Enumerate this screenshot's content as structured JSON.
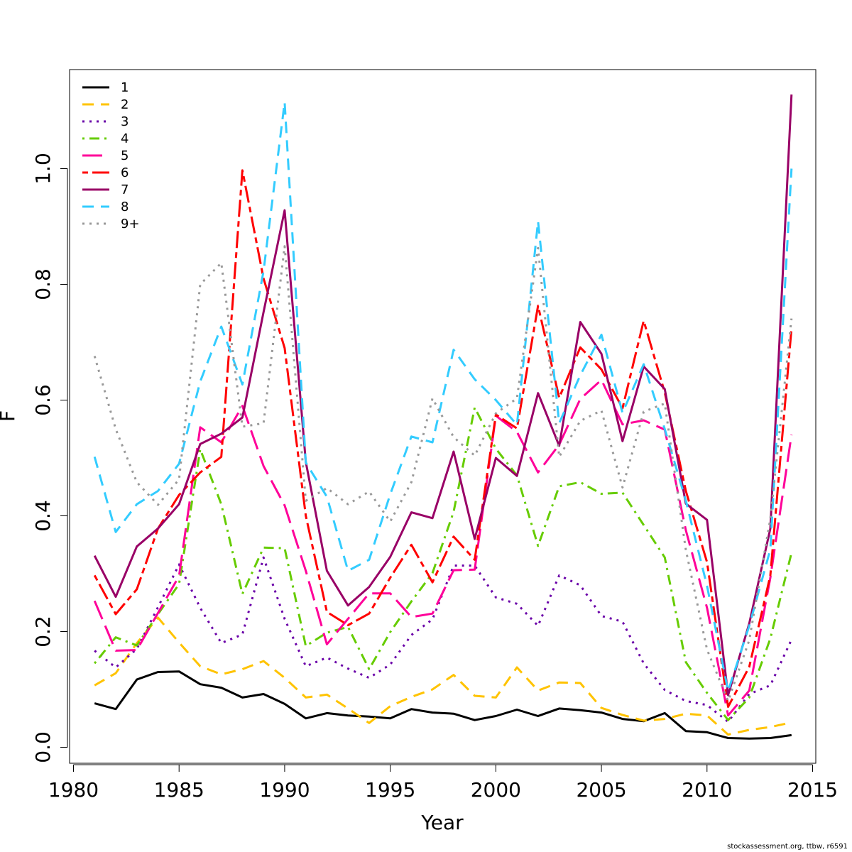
{
  "chart_data": {
    "type": "line",
    "xlabel": "Year",
    "ylabel": "F",
    "xlim": [
      1980,
      2015
    ],
    "ylim": [
      0,
      1.15
    ],
    "xticks": [
      "1980",
      "1985",
      "1990",
      "1995",
      "2000",
      "2005",
      "2010",
      "2015"
    ],
    "yticks": [
      "0.0",
      "0.2",
      "0.4",
      "0.6",
      "0.8",
      "1.0"
    ],
    "legend_position": "top-left",
    "grid": false,
    "x": [
      1981,
      1982,
      1983,
      1984,
      1985,
      1986,
      1987,
      1988,
      1989,
      1990,
      1991,
      1992,
      1993,
      1994,
      1995,
      1996,
      1997,
      1998,
      1999,
      2000,
      2001,
      2002,
      2003,
      2004,
      2005,
      2006,
      2007,
      2008,
      2009,
      2010,
      2011,
      2012,
      2013,
      2014
    ],
    "series": [
      {
        "name": "1",
        "color": "#000000",
        "dash": "solid",
        "values": [
          0.076,
          0.066,
          0.117,
          0.13,
          0.131,
          0.109,
          0.103,
          0.086,
          0.092,
          0.075,
          0.05,
          0.059,
          0.055,
          0.053,
          0.05,
          0.066,
          0.06,
          0.058,
          0.047,
          0.054,
          0.065,
          0.054,
          0.067,
          0.064,
          0.06,
          0.049,
          0.045,
          0.059,
          0.028,
          0.026,
          0.016,
          0.015,
          0.016,
          0.021
        ]
      },
      {
        "name": "2",
        "color": "#FFC300",
        "dash": "dashed",
        "values": [
          0.107,
          0.128,
          0.18,
          0.224,
          0.181,
          0.14,
          0.126,
          0.135,
          0.149,
          0.12,
          0.086,
          0.091,
          0.067,
          0.042,
          0.071,
          0.087,
          0.1,
          0.125,
          0.089,
          0.086,
          0.138,
          0.098,
          0.112,
          0.111,
          0.068,
          0.056,
          0.046,
          0.049,
          0.058,
          0.055,
          0.022,
          0.03,
          0.035,
          0.043
        ]
      },
      {
        "name": "3",
        "color": "#6A00A8",
        "dash": "dotted",
        "values": [
          0.167,
          0.138,
          0.17,
          0.242,
          0.316,
          0.241,
          0.18,
          0.195,
          0.328,
          0.222,
          0.14,
          0.155,
          0.136,
          0.12,
          0.143,
          0.194,
          0.221,
          0.314,
          0.314,
          0.259,
          0.248,
          0.21,
          0.297,
          0.28,
          0.227,
          0.217,
          0.145,
          0.099,
          0.08,
          0.073,
          0.044,
          0.092,
          0.107,
          0.186
        ]
      },
      {
        "name": "4",
        "color": "#66CC00",
        "dash": "dotdash",
        "values": [
          0.145,
          0.19,
          0.176,
          0.23,
          0.282,
          0.515,
          0.42,
          0.265,
          0.345,
          0.344,
          0.175,
          0.198,
          0.208,
          0.135,
          0.199,
          0.252,
          0.301,
          0.407,
          0.587,
          0.516,
          0.47,
          0.348,
          0.451,
          0.458,
          0.438,
          0.44,
          0.384,
          0.328,
          0.147,
          0.094,
          0.047,
          0.086,
          0.188,
          0.336
        ]
      },
      {
        "name": "5",
        "color": "#FF0099",
        "dash": "longdash",
        "values": [
          0.253,
          0.167,
          0.168,
          0.232,
          0.296,
          0.553,
          0.527,
          0.59,
          0.486,
          0.418,
          0.305,
          0.178,
          0.222,
          0.266,
          0.266,
          0.225,
          0.231,
          0.306,
          0.307,
          0.573,
          0.545,
          0.475,
          0.523,
          0.602,
          0.635,
          0.558,
          0.565,
          0.549,
          0.375,
          0.241,
          0.055,
          0.098,
          0.293,
          0.54
        ]
      },
      {
        "name": "6",
        "color": "#FF0000",
        "dash": "twodash",
        "values": [
          0.297,
          0.23,
          0.273,
          0.378,
          0.436,
          0.475,
          0.502,
          0.997,
          0.81,
          0.69,
          0.4,
          0.234,
          0.211,
          0.231,
          0.293,
          0.35,
          0.285,
          0.364,
          0.324,
          0.575,
          0.551,
          0.763,
          0.604,
          0.691,
          0.653,
          0.586,
          0.737,
          0.613,
          0.443,
          0.32,
          0.07,
          0.139,
          0.297,
          0.724
        ]
      },
      {
        "name": "7",
        "color": "#990066",
        "dash": "solid",
        "values": [
          0.331,
          0.26,
          0.347,
          0.378,
          0.42,
          0.524,
          0.542,
          0.57,
          0.752,
          0.928,
          0.493,
          0.305,
          0.245,
          0.277,
          0.329,
          0.406,
          0.396,
          0.511,
          0.36,
          0.5,
          0.469,
          0.612,
          0.521,
          0.735,
          0.68,
          0.529,
          0.658,
          0.619,
          0.421,
          0.393,
          0.09,
          0.214,
          0.378,
          1.128
        ]
      },
      {
        "name": "8",
        "color": "#33CCFF",
        "dash": "dashed",
        "values": [
          0.502,
          0.372,
          0.42,
          0.443,
          0.49,
          0.632,
          0.727,
          0.627,
          0.823,
          1.115,
          0.492,
          0.433,
          0.305,
          0.324,
          0.437,
          0.537,
          0.527,
          0.687,
          0.636,
          0.6,
          0.557,
          0.909,
          0.56,
          0.643,
          0.713,
          0.578,
          0.662,
          0.55,
          0.426,
          0.279,
          0.097,
          0.21,
          0.342,
          1.0
        ]
      },
      {
        "name": "9+",
        "color": "#999999",
        "dash": "dotted",
        "values": [
          0.676,
          0.55,
          0.458,
          0.419,
          0.463,
          0.8,
          0.837,
          0.554,
          0.56,
          0.866,
          0.426,
          0.448,
          0.42,
          0.442,
          0.39,
          0.458,
          0.603,
          0.536,
          0.504,
          0.577,
          0.603,
          0.863,
          0.502,
          0.564,
          0.582,
          0.449,
          0.58,
          0.594,
          0.341,
          0.169,
          0.08,
          0.185,
          0.395,
          0.741
        ]
      }
    ]
  },
  "footer": {
    "credit": "stockassessment.org, ttbw, r6591"
  }
}
